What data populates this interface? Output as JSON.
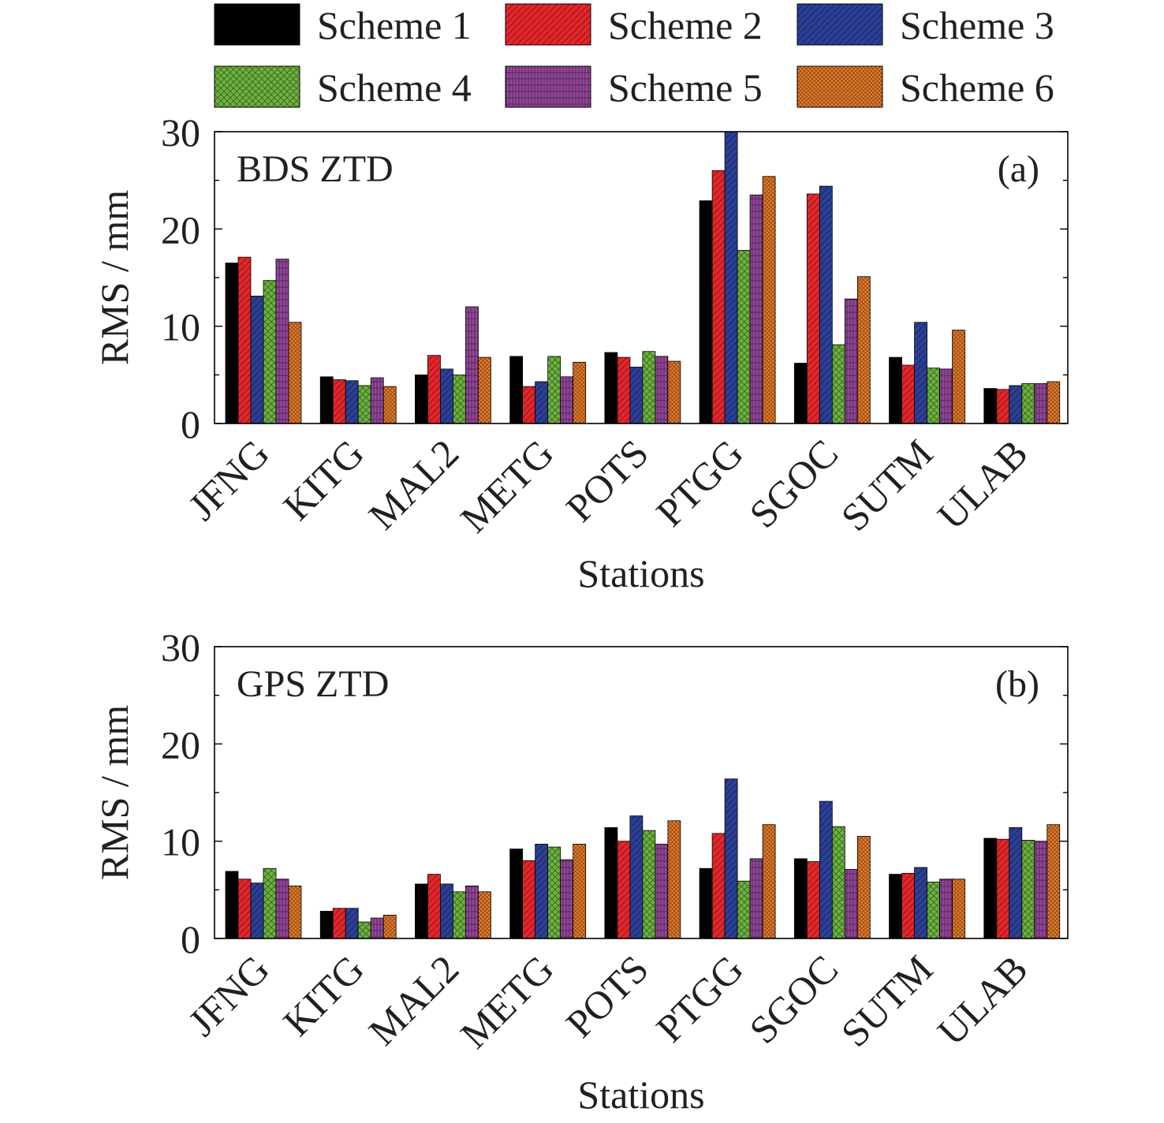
{
  "legend": {
    "items": [
      {
        "label": "Scheme 1",
        "color": "#000000",
        "pattern": "solid"
      },
      {
        "label": "Scheme 2",
        "color": "#e3262b",
        "pattern": "diagonal-light"
      },
      {
        "label": "Scheme 3",
        "color": "#2b3f95",
        "pattern": "diagonal-light"
      },
      {
        "label": "Scheme 4",
        "color": "#6cb33e",
        "pattern": "crosshatch"
      },
      {
        "label": "Scheme 5",
        "color": "#94479a",
        "pattern": "vertical-grid"
      },
      {
        "label": "Scheme 6",
        "color": "#f07f2a",
        "pattern": "dense-hatch"
      }
    ]
  },
  "chart_data": [
    {
      "type": "bar",
      "panel_label": "(a)",
      "inset_title": "BDS ZTD",
      "xlabel": "Stations",
      "ylabel": "RMS / mm",
      "ylim": [
        0,
        30
      ],
      "yticks": [
        0,
        10,
        20,
        30
      ],
      "grid": false,
      "categories": [
        "JFNG",
        "KITG",
        "MAL2",
        "METG",
        "POTS",
        "PTGG",
        "SGOC",
        "SUTM",
        "ULAB"
      ],
      "series": [
        {
          "name": "Scheme 1",
          "values": [
            16.5,
            4.8,
            5.0,
            6.9,
            7.3,
            22.9,
            6.2,
            6.8,
            3.6
          ]
        },
        {
          "name": "Scheme 2",
          "values": [
            17.1,
            4.5,
            7.0,
            3.8,
            6.8,
            26.0,
            23.6,
            6.0,
            3.5
          ]
        },
        {
          "name": "Scheme 3",
          "values": [
            13.1,
            4.4,
            5.6,
            4.3,
            5.8,
            30.0,
            24.4,
            10.4,
            3.9
          ]
        },
        {
          "name": "Scheme 4",
          "values": [
            14.7,
            3.9,
            5.0,
            6.9,
            7.4,
            17.8,
            8.1,
            5.7,
            4.1
          ]
        },
        {
          "name": "Scheme 5",
          "values": [
            16.9,
            4.7,
            12.0,
            4.8,
            6.9,
            23.5,
            12.8,
            5.6,
            4.1
          ]
        },
        {
          "name": "Scheme 6",
          "values": [
            10.4,
            3.8,
            6.8,
            6.3,
            6.4,
            25.4,
            15.1,
            9.6,
            4.3
          ]
        }
      ]
    },
    {
      "type": "bar",
      "panel_label": "(b)",
      "inset_title": "GPS ZTD",
      "xlabel": "Stations",
      "ylabel": "RMS / mm",
      "ylim": [
        0,
        30
      ],
      "yticks": [
        0,
        10,
        20,
        30
      ],
      "grid": false,
      "categories": [
        "JFNG",
        "KITG",
        "MAL2",
        "METG",
        "POTS",
        "PTGG",
        "SGOC",
        "SUTM",
        "ULAB"
      ],
      "series": [
        {
          "name": "Scheme 1",
          "values": [
            6.9,
            2.8,
            5.6,
            9.2,
            11.4,
            7.2,
            8.2,
            6.6,
            10.3
          ]
        },
        {
          "name": "Scheme 2",
          "values": [
            6.1,
            3.1,
            6.6,
            8.0,
            10.0,
            10.8,
            7.9,
            6.7,
            10.2
          ]
        },
        {
          "name": "Scheme 3",
          "values": [
            5.7,
            3.1,
            5.6,
            9.7,
            12.6,
            16.4,
            14.1,
            7.3,
            11.4
          ]
        },
        {
          "name": "Scheme 4",
          "values": [
            7.2,
            1.7,
            4.8,
            9.4,
            11.1,
            5.9,
            11.5,
            5.8,
            10.1
          ]
        },
        {
          "name": "Scheme 5",
          "values": [
            6.1,
            2.1,
            5.4,
            8.1,
            9.7,
            8.2,
            7.1,
            6.1,
            10.0
          ]
        },
        {
          "name": "Scheme 6",
          "values": [
            5.4,
            2.4,
            4.8,
            9.7,
            12.1,
            11.7,
            10.5,
            6.1,
            11.7
          ]
        }
      ]
    }
  ]
}
